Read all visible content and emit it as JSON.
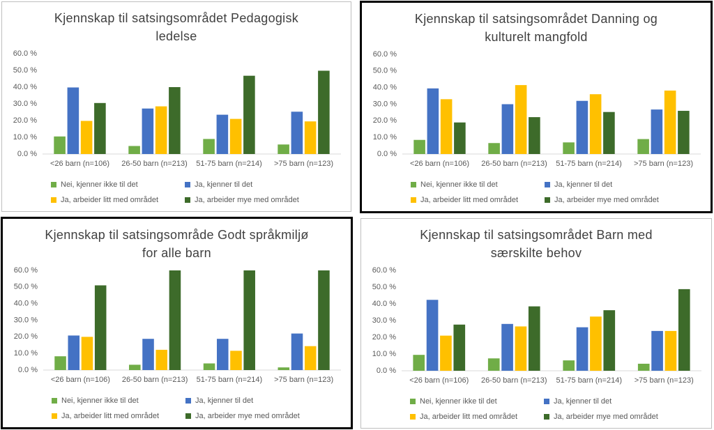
{
  "chart_data": [
    {
      "type": "bar",
      "title": "Kjennskap til satsingsområdet Pedagogisk ledelse",
      "categories": [
        "<26 barn (n=106)",
        "26-50 barn (n=213)",
        "51-75 barn (n=214)",
        ">75 barn (n=123)"
      ],
      "series": [
        {
          "name": "Nei, kjenner ikke til det",
          "color": "#70ad47",
          "values": [
            10.5,
            4.8,
            9.0,
            5.7
          ]
        },
        {
          "name": "Ja, kjenner til det",
          "color": "#4472c4",
          "values": [
            39.8,
            27.2,
            23.5,
            25.3
          ]
        },
        {
          "name": "Ja, arbeider litt med området",
          "color": "#ffc000",
          "values": [
            19.8,
            28.5,
            21.0,
            19.5
          ]
        },
        {
          "name": "Ja, arbeider mye med området",
          "color": "#3d6b2a",
          "values": [
            30.5,
            40.0,
            46.8,
            49.8
          ]
        }
      ],
      "ylim": [
        0,
        60
      ],
      "yticks": [
        {
          "value": 0,
          "label": "0.0 %"
        },
        {
          "value": 10,
          "label": "10.0 %"
        },
        {
          "value": 20,
          "label": "20.0 %"
        },
        {
          "value": 30,
          "label": "30.0 %"
        },
        {
          "value": 40,
          "label": "40.0 %"
        },
        {
          "value": 50,
          "label": "50.0 %"
        },
        {
          "value": 60,
          "label": "60.0 %"
        }
      ]
    },
    {
      "type": "bar",
      "title": "Kjennskap til satsingsområdet Danning og kulturelt mangfold",
      "categories": [
        "<26 barn (n=106)",
        "26-50 barn (n=213)",
        "51-75 barn (n=214)",
        ">75 barn (n=123)"
      ],
      "series": [
        {
          "name": "Nei, kjenner ikke til det",
          "color": "#70ad47",
          "values": [
            8.5,
            6.6,
            7.0,
            9.0
          ]
        },
        {
          "name": "Ja, kjenner til det",
          "color": "#4472c4",
          "values": [
            39.5,
            30.0,
            32.0,
            26.8
          ]
        },
        {
          "name": "Ja, arbeider litt med området",
          "color": "#ffc000",
          "values": [
            33.0,
            41.5,
            36.0,
            38.2
          ]
        },
        {
          "name": "Ja, arbeider mye med området",
          "color": "#3d6b2a",
          "values": [
            19.0,
            22.2,
            25.3,
            26.0
          ]
        }
      ],
      "ylim": [
        0,
        60
      ],
      "yticks": [
        {
          "value": 0,
          "label": "0.0 %"
        },
        {
          "value": 10,
          "label": "10.0 %"
        },
        {
          "value": 20,
          "label": "20.0 %"
        },
        {
          "value": 30,
          "label": "30.0 %"
        },
        {
          "value": 40,
          "label": "40.0 %"
        },
        {
          "value": 50,
          "label": "50.0 %"
        },
        {
          "value": 60,
          "label": "60.0 %"
        }
      ]
    },
    {
      "type": "bar",
      "title": "Kjennskap til satsingsområde Godt språkmiljø for alle barn",
      "categories": [
        "<26 barn (n=106)",
        "26-50 barn (n=213)",
        "51-75 barn (n=214)",
        ">75 barn (n=123)"
      ],
      "series": [
        {
          "name": "Nei, kjenner ikke til det",
          "color": "#70ad47",
          "values": [
            8.3,
            3.2,
            4.0,
            1.6
          ]
        },
        {
          "name": "Ja, kjenner til det",
          "color": "#4472c4",
          "values": [
            20.8,
            18.8,
            18.8,
            22.0
          ]
        },
        {
          "name": "Ja, arbeider litt med området",
          "color": "#ffc000",
          "values": [
            20.0,
            12.2,
            11.6,
            14.4
          ]
        },
        {
          "name": "Ja, arbeider mye med området",
          "color": "#3d6b2a",
          "values": [
            51.0,
            60.0,
            60.0,
            60.0
          ]
        }
      ],
      "ylim": [
        0,
        60
      ],
      "yticks": [
        {
          "value": 0,
          "label": "0.0 %"
        },
        {
          "value": 10,
          "label": "10.0 %"
        },
        {
          "value": 20,
          "label": "20.0 %"
        },
        {
          "value": 30,
          "label": "30.0 %"
        },
        {
          "value": 40,
          "label": "40.0 %"
        },
        {
          "value": 50,
          "label": "50.0 %"
        },
        {
          "value": 60,
          "label": "60.0 %"
        }
      ]
    },
    {
      "type": "bar",
      "title": "Kjennskap til satsingsområdet Barn med særskilte behov",
      "categories": [
        "<26 barn (n=106)",
        "26-50 barn (n=213)",
        "51-75 barn (n=214)",
        ">75 barn (n=123)"
      ],
      "series": [
        {
          "name": "Nei, kjenner ikke til det",
          "color": "#70ad47",
          "values": [
            9.5,
            7.4,
            6.2,
            4.2
          ]
        },
        {
          "name": "Ja, kjenner til det",
          "color": "#4472c4",
          "values": [
            42.4,
            28.0,
            26.0,
            23.8
          ]
        },
        {
          "name": "Ja, arbeider litt med området",
          "color": "#ffc000",
          "values": [
            21.0,
            26.5,
            32.4,
            23.8
          ]
        },
        {
          "name": "Ja, arbeider mye med området",
          "color": "#3d6b2a",
          "values": [
            27.6,
            38.5,
            36.2,
            48.8
          ]
        }
      ],
      "ylim": [
        0,
        60
      ],
      "yticks": [
        {
          "value": 0,
          "label": "0.0 %"
        },
        {
          "value": 10,
          "label": "10.0 %"
        },
        {
          "value": 20,
          "label": "20.0 %"
        },
        {
          "value": 30,
          "label": "30.0 %"
        },
        {
          "value": 40,
          "label": "40.0 %"
        },
        {
          "value": 50,
          "label": "50.0 %"
        },
        {
          "value": 60,
          "label": "60.0 %"
        }
      ]
    }
  ]
}
